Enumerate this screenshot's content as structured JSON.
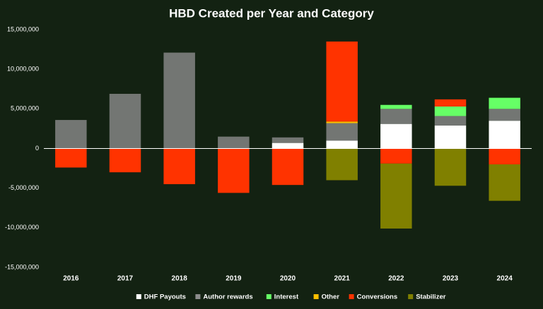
{
  "chart_data": {
    "type": "stacked_bar",
    "title": "HBD Created per Year and Category",
    "categories": [
      "2016",
      "2017",
      "2018",
      "2019",
      "2020",
      "2021",
      "2022",
      "2023",
      "2024"
    ],
    "series": [
      {
        "name": "DHF Payouts",
        "color": "#ffffff",
        "values": [
          null,
          null,
          null,
          null,
          700000,
          1000000,
          3100000,
          2900000,
          3500000
        ]
      },
      {
        "name": "Author rewards",
        "color": "#8c8c8c",
        "values": [
          3600000,
          6900000,
          12100000,
          1500000,
          700000,
          2200000,
          1900000,
          1200000,
          1500000
        ]
      },
      {
        "name": "Interest",
        "color": "#66ff66",
        "values": [
          null,
          null,
          null,
          null,
          null,
          null,
          500000,
          1200000,
          1400000
        ]
      },
      {
        "name": "Other",
        "color": "#ffc000",
        "values": [
          null,
          null,
          null,
          null,
          null,
          200000,
          null,
          null,
          null
        ]
      },
      {
        "name": "Conversions",
        "color": "#ff3300",
        "values": [
          -2400000,
          -3000000,
          -4500000,
          -5600000,
          -4600000,
          10100000,
          -1900000,
          900000,
          -2000000
        ]
      },
      {
        "name": "Stabilizer",
        "color": "#808000",
        "values": [
          null,
          null,
          null,
          null,
          null,
          -4000000,
          -8200000,
          -4700000,
          -4600000
        ]
      }
    ],
    "ylim": [
      -15000000,
      15000000
    ],
    "yticks": [
      {
        "value": -15000000,
        "label": "-15,000,000"
      },
      {
        "value": -10000000,
        "label": "-10,000,000"
      },
      {
        "value": -5000000,
        "label": "-5,000,000"
      },
      {
        "value": 0,
        "label": "0"
      },
      {
        "value": 5000000,
        "label": "5,000,000"
      },
      {
        "value": 10000000,
        "label": "10,000,000"
      },
      {
        "value": 15000000,
        "label": "15,000,000"
      }
    ],
    "legend": "bottom"
  }
}
